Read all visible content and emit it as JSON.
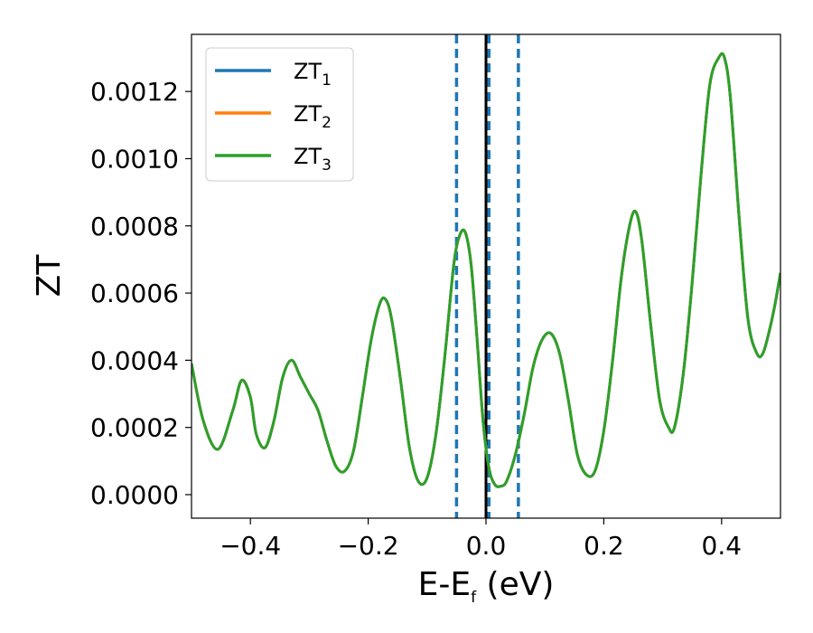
{
  "chart_data": {
    "type": "line",
    "xlabel": "E-E",
    "xlabel_sub": "f",
    "xlabel_unit": " (eV)",
    "ylabel": "ZT",
    "xlim": [
      -0.5,
      0.5
    ],
    "ylim": [
      -7e-05,
      0.00137
    ],
    "xticks": [
      -0.4,
      -0.2,
      0.0,
      0.2,
      0.4
    ],
    "xtick_labels": [
      "−0.4",
      "−0.2",
      "0.0",
      "0.2",
      "0.4"
    ],
    "yticks": [
      0.0,
      0.0002,
      0.0004,
      0.0006,
      0.0008,
      0.001,
      0.0012
    ],
    "ytick_labels": [
      "0.0000",
      "0.0002",
      "0.0004",
      "0.0006",
      "0.0008",
      "0.0010",
      "0.0012"
    ],
    "grid": false,
    "legend_position": "top-left",
    "series": [
      {
        "name": "ZT",
        "sub": "1",
        "color": "#1f77b4",
        "x": [],
        "y": []
      },
      {
        "name": "ZT",
        "sub": "2",
        "color": "#ff7f0e",
        "x": [],
        "y": []
      },
      {
        "name": "ZT",
        "sub": "3",
        "color": "#2ca02c",
        "x": [
          -0.5,
          -0.48,
          -0.455,
          -0.43,
          -0.415,
          -0.4,
          -0.39,
          -0.375,
          -0.36,
          -0.345,
          -0.33,
          -0.315,
          -0.3,
          -0.285,
          -0.27,
          -0.255,
          -0.24,
          -0.225,
          -0.21,
          -0.195,
          -0.18,
          -0.17,
          -0.16,
          -0.145,
          -0.13,
          -0.115,
          -0.1,
          -0.085,
          -0.07,
          -0.055,
          -0.045,
          -0.035,
          -0.025,
          -0.015,
          -0.005,
          0.005,
          0.015,
          0.025,
          0.035,
          0.05,
          0.065,
          0.08,
          0.095,
          0.11,
          0.125,
          0.14,
          0.155,
          0.17,
          0.185,
          0.2,
          0.215,
          0.23,
          0.245,
          0.255,
          0.265,
          0.28,
          0.295,
          0.31,
          0.32,
          0.335,
          0.35,
          0.365,
          0.38,
          0.395,
          0.405,
          0.415,
          0.43,
          0.445,
          0.46,
          0.47,
          0.48,
          0.49,
          0.5
        ],
        "y": [
          0.00039,
          0.00022,
          0.000135,
          0.00025,
          0.00034,
          0.00029,
          0.00018,
          0.00014,
          0.00022,
          0.00035,
          0.0004,
          0.00035,
          0.0003,
          0.00025,
          0.00016,
          8.5e-05,
          7e-05,
          0.00013,
          0.00029,
          0.00046,
          0.00057,
          0.00058,
          0.00052,
          0.00034,
          0.00014,
          4e-05,
          5e-05,
          0.00018,
          0.00041,
          0.00068,
          0.00077,
          0.00078,
          0.00068,
          0.00046,
          0.00022,
          8e-05,
          3e-05,
          2.5e-05,
          4e-05,
          0.00012,
          0.00024,
          0.00038,
          0.00046,
          0.00048,
          0.00042,
          0.00028,
          0.00012,
          6e-05,
          7e-05,
          0.00019,
          0.0004,
          0.00065,
          0.00081,
          0.00084,
          0.00075,
          0.0005,
          0.00028,
          0.0002,
          0.0002,
          0.00036,
          0.00063,
          0.00095,
          0.00122,
          0.0013,
          0.0013,
          0.00118,
          0.00082,
          0.00052,
          0.00042,
          0.00042,
          0.00048,
          0.00056,
          0.00066
        ]
      }
    ],
    "vlines": [
      {
        "x": 0.0,
        "style": "solid",
        "color": "#000000"
      },
      {
        "x": -0.05,
        "style": "dashed",
        "color": "#1f77b4"
      },
      {
        "x": 0.005,
        "style": "dashed",
        "color": "#1f77b4"
      },
      {
        "x": 0.055,
        "style": "dashed",
        "color": "#1f77b4"
      }
    ]
  }
}
